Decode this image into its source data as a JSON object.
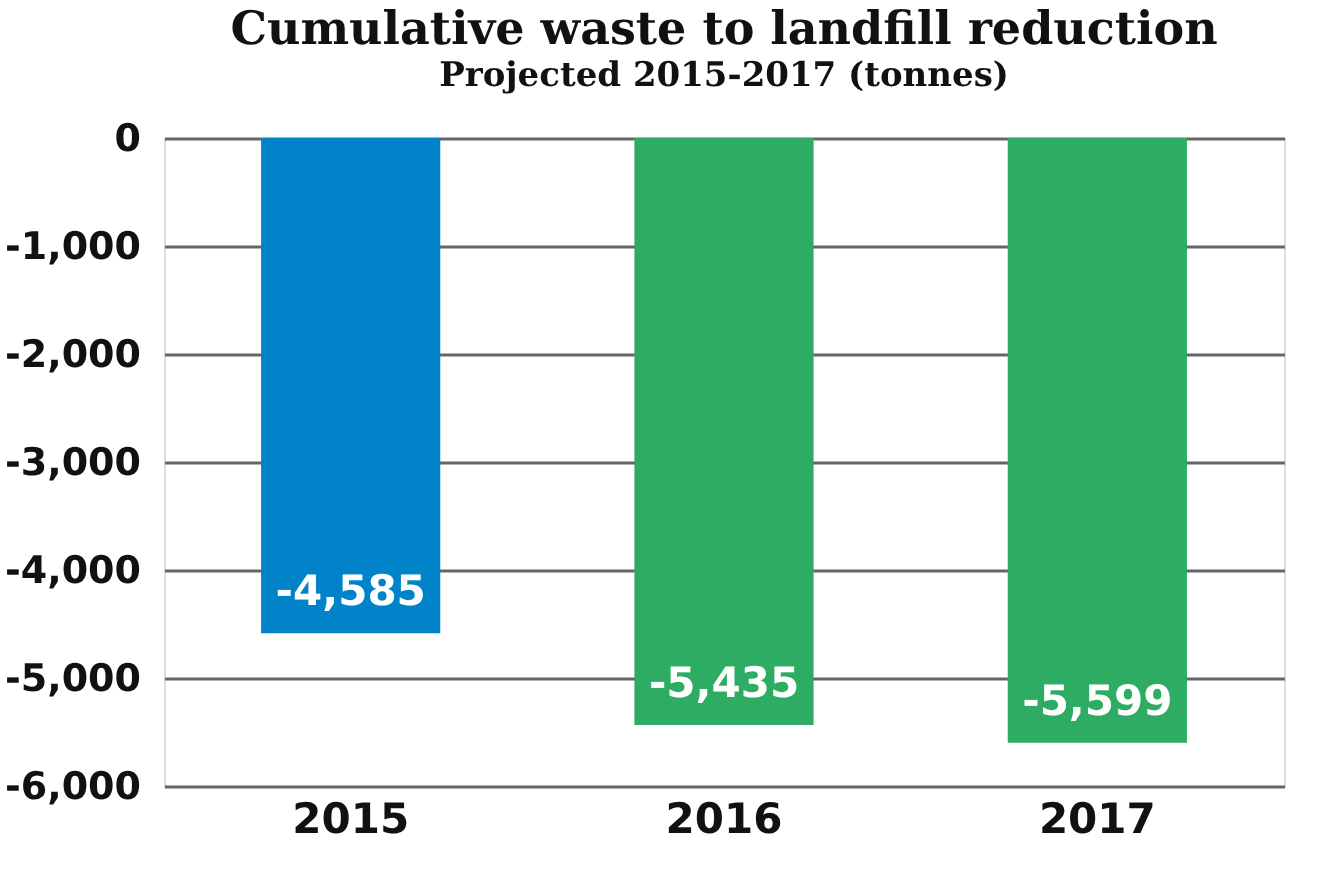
{
  "chart_data": {
    "type": "bar",
    "title": "Cumulative waste to landfill reduction",
    "subtitle": "Projected 2015-2017 (tonnes)",
    "categories": [
      "2015",
      "2016",
      "2017"
    ],
    "values": [
      -4585,
      -5435,
      -5599
    ],
    "value_labels": [
      "-4,585",
      "-5,435",
      "-5,599"
    ],
    "colors": [
      "#0083c9",
      "#2eac64",
      "#2eac64"
    ],
    "ylim": [
      -6000,
      0
    ],
    "yticks": [
      {
        "value": -6000,
        "label": "-6,000"
      },
      {
        "value": -5000,
        "label": "-5,000"
      },
      {
        "value": -4000,
        "label": "-4,000"
      },
      {
        "value": -3000,
        "label": "-3,000"
      },
      {
        "value": -2000,
        "label": "-2,000"
      },
      {
        "value": -1000,
        "label": "-1,000"
      },
      0
    ],
    "grid": "y"
  }
}
